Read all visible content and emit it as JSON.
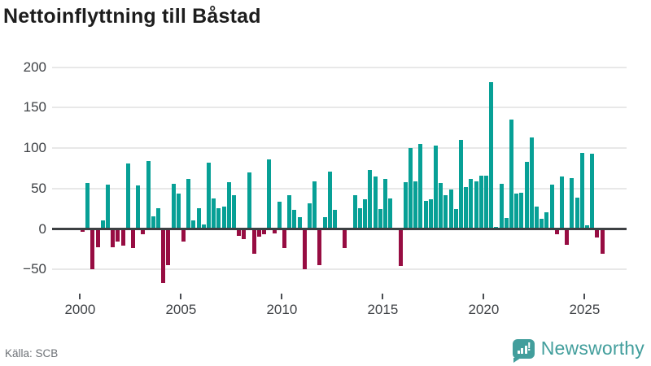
{
  "title": "Nettoinflyttning till Båstad",
  "footer": {
    "source": "Källa: SCB",
    "brand": "Newsworthy"
  },
  "colors": {
    "positive": "#07a096",
    "negative": "#970d42",
    "grid": "#e8e8e8",
    "zero_line": "#3d4043",
    "axis_text": "#3f4246",
    "title_text": "#1d1d1d",
    "source_text": "#6e7277",
    "brand_teal": "#429e9c"
  },
  "chart_data": {
    "type": "bar",
    "title": "Nettoinflyttning till Båstad",
    "x_unit": "quarter",
    "start_year": 2000,
    "series_by_year": [
      {
        "year": 2000,
        "q": [
          -3,
          57,
          -49,
          -22
        ]
      },
      {
        "year": 2001,
        "q": [
          11,
          55,
          -22,
          -15
        ]
      },
      {
        "year": 2002,
        "q": [
          -20,
          81,
          -23,
          54
        ]
      },
      {
        "year": 2003,
        "q": [
          -6,
          84,
          16,
          26
        ]
      },
      {
        "year": 2004,
        "q": [
          -66,
          -44,
          56,
          44
        ]
      },
      {
        "year": 2005,
        "q": [
          -15,
          62,
          11,
          26
        ]
      },
      {
        "year": 2006,
        "q": [
          6,
          82,
          38,
          26
        ]
      },
      {
        "year": 2007,
        "q": [
          28,
          58,
          42,
          -8
        ]
      },
      {
        "year": 2008,
        "q": [
          -12,
          70,
          -30,
          -9
        ]
      },
      {
        "year": 2009,
        "q": [
          -6,
          86,
          -5,
          34
        ]
      },
      {
        "year": 2010,
        "q": [
          -23,
          42,
          24,
          15
        ]
      },
      {
        "year": 2011,
        "q": [
          -49,
          32,
          59,
          -44
        ]
      },
      {
        "year": 2012,
        "q": [
          15,
          71,
          24,
          0
        ]
      },
      {
        "year": 2013,
        "q": [
          -23,
          0,
          42,
          26
        ]
      },
      {
        "year": 2014,
        "q": [
          37,
          73,
          65,
          25
        ]
      },
      {
        "year": 2015,
        "q": [
          62,
          38,
          0,
          -45
        ]
      },
      {
        "year": 2016,
        "q": [
          58,
          100,
          59,
          105
        ]
      },
      {
        "year": 2017,
        "q": [
          35,
          37,
          103,
          57
        ]
      },
      {
        "year": 2018,
        "q": [
          42,
          49,
          25,
          110
        ]
      },
      {
        "year": 2019,
        "q": [
          52,
          62,
          59,
          66
        ]
      },
      {
        "year": 2020,
        "q": [
          66,
          182,
          3,
          56
        ]
      },
      {
        "year": 2021,
        "q": [
          14,
          135,
          44,
          45
        ]
      },
      {
        "year": 2022,
        "q": [
          83,
          113,
          28,
          13
        ]
      },
      {
        "year": 2023,
        "q": [
          21,
          55,
          -6,
          65
        ]
      },
      {
        "year": 2024,
        "q": [
          -19,
          63,
          39,
          94
        ]
      },
      {
        "year": 2025,
        "q": [
          5,
          93,
          -10,
          -30
        ]
      }
    ],
    "y_ticks": [
      200,
      150,
      100,
      50,
      0,
      -50
    ],
    "x_tick_labels": [
      "2000",
      "2005",
      "2010",
      "2015",
      "2020",
      "2025"
    ],
    "ylim": [
      -80,
      215
    ],
    "grid": true,
    "legend": "none",
    "positive_color": "#07a096",
    "negative_color": "#970d42"
  }
}
